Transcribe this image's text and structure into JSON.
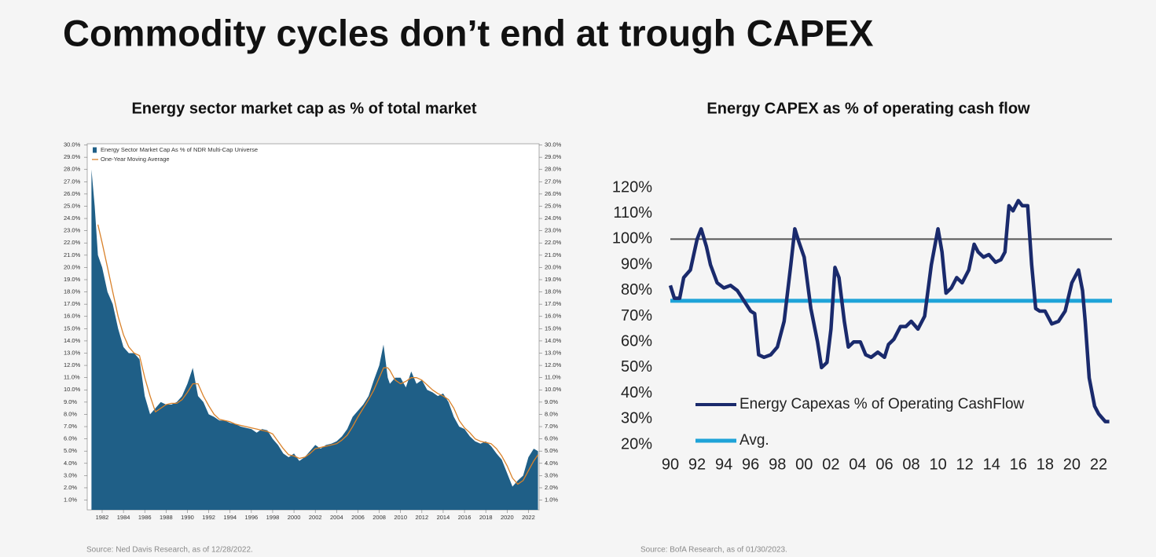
{
  "slide": {
    "title": "Commodity cycles don’t end at trough CAPEX"
  },
  "chart_data": [
    {
      "type": "area",
      "title": "Energy sector market cap as % of total market",
      "source": "Source: Ned Davis Research, as of 12/28/2022.",
      "x": [
        1981,
        1981.3,
        1981.6,
        1982,
        1982.5,
        1983,
        1983.5,
        1984,
        1984.5,
        1985,
        1985.5,
        1986,
        1986.5,
        1987,
        1987.5,
        1988,
        1988.5,
        1989,
        1989.5,
        1990,
        1990.5,
        1991,
        1991.5,
        1992,
        1992.5,
        1993,
        1993.5,
        1994,
        1994.5,
        1995,
        1995.5,
        1996,
        1996.5,
        1997,
        1997.5,
        1998,
        1998.5,
        1999,
        1999.5,
        2000,
        2000.5,
        2001,
        2001.5,
        2002,
        2002.5,
        2003,
        2003.5,
        2004,
        2004.5,
        2005,
        2005.5,
        2006,
        2006.5,
        2007,
        2007.5,
        2008,
        2008.4,
        2008.8,
        2009,
        2009.5,
        2010,
        2010.5,
        2011,
        2011.5,
        2012,
        2012.5,
        2013,
        2013.5,
        2014,
        2014.5,
        2015,
        2015.5,
        2016,
        2016.5,
        2017,
        2017.5,
        2018,
        2018.5,
        2019,
        2019.5,
        2020,
        2020.5,
        2021,
        2021.5,
        2022,
        2022.5,
        2022.9
      ],
      "series": [
        {
          "name": "Energy Sector Market Cap As % of NDR Multi-Cap Universe",
          "color": "#1f5f87",
          "values": [
            28,
            25,
            21,
            20,
            18,
            17,
            15,
            13.5,
            13,
            13,
            12.5,
            9.5,
            8,
            8.5,
            9,
            8.8,
            8.8,
            9,
            9.5,
            10.5,
            11.8,
            9.5,
            9,
            8,
            7.8,
            7.5,
            7.5,
            7.3,
            7.2,
            7,
            6.9,
            6.8,
            6.5,
            6.8,
            6.7,
            6,
            5.5,
            4.8,
            4.5,
            4.8,
            4.2,
            4.5,
            5,
            5.5,
            5.2,
            5.5,
            5.6,
            5.8,
            6.2,
            6.8,
            7.8,
            8.3,
            8.8,
            9.5,
            10.8,
            12,
            13.7,
            11,
            10.5,
            11,
            11,
            10.2,
            11.5,
            10.5,
            10.8,
            10,
            9.8,
            9.5,
            9.7,
            9,
            7.8,
            7,
            6.8,
            6.2,
            5.8,
            5.6,
            5.8,
            5.4,
            4.8,
            4.3,
            3.2,
            2.1,
            2.6,
            3,
            4.5,
            5.2,
            5
          ]
        },
        {
          "name": "One-Year Moving Average",
          "color": "#d9822b",
          "type": "line",
          "values": [
            null,
            null,
            23.5,
            22,
            20,
            18,
            16,
            14.5,
            13.5,
            13,
            12.8,
            11,
            9.5,
            8.2,
            8.5,
            8.8,
            8.9,
            8.9,
            9.2,
            9.8,
            10.5,
            10.5,
            9.5,
            8.7,
            8,
            7.6,
            7.5,
            7.4,
            7.2,
            7.1,
            7,
            6.9,
            6.8,
            6.7,
            6.6,
            6.4,
            5.8,
            5.2,
            4.7,
            4.6,
            4.4,
            4.5,
            4.8,
            5.2,
            5.3,
            5.4,
            5.5,
            5.6,
            5.9,
            6.3,
            7,
            7.8,
            8.5,
            9.2,
            10,
            11,
            11.8,
            11.8,
            11.6,
            10.8,
            10.5,
            10.7,
            11,
            11,
            10.8,
            10.4,
            10,
            9.7,
            9.5,
            9.2,
            8.5,
            7.5,
            6.9,
            6.5,
            6,
            5.8,
            5.7,
            5.6,
            5.2,
            4.6,
            3.8,
            2.8,
            2.3,
            2.6,
            3.4,
            4.2,
            4.7
          ]
        }
      ],
      "xlim": [
        1980.6,
        2023
      ],
      "xticks": [
        1982,
        1984,
        1986,
        1988,
        1990,
        1992,
        1994,
        1996,
        1998,
        2000,
        2002,
        2004,
        2006,
        2008,
        2010,
        2012,
        2014,
        2016,
        2018,
        2020,
        2022
      ],
      "ylim": [
        0.2,
        30.1
      ],
      "yticks": [
        {
          "value": 1,
          "label": "1.0%"
        },
        {
          "value": 2,
          "label": "2.0%"
        },
        {
          "value": 3,
          "label": "3.0%"
        },
        {
          "value": 4,
          "label": "4.0%"
        },
        {
          "value": 5,
          "label": "5.0%"
        },
        {
          "value": 6,
          "label": "6.0%"
        },
        {
          "value": 7,
          "label": "7.0%"
        },
        {
          "value": 8,
          "label": "8.0%"
        },
        {
          "value": 9,
          "label": "9.0%"
        },
        {
          "value": 10,
          "label": "10.0%"
        },
        {
          "value": 11,
          "label": "11.0%"
        },
        {
          "value": 12,
          "label": "12.0%"
        },
        {
          "value": 13,
          "label": "13.0%"
        },
        {
          "value": 14,
          "label": "14.0%"
        },
        {
          "value": 15,
          "label": "15.0%"
        },
        {
          "value": 16,
          "label": "16.0%"
        },
        {
          "value": 17,
          "label": "17.0%"
        },
        {
          "value": 18,
          "label": "18.0%"
        },
        {
          "value": 19,
          "label": "19.0%"
        },
        {
          "value": 20,
          "label": "20.0%"
        },
        {
          "value": 21,
          "label": "21.0%"
        },
        {
          "value": 22,
          "label": "22.0%"
        },
        {
          "value": 23,
          "label": "23.0%"
        },
        {
          "value": 24,
          "label": "24.0%"
        },
        {
          "value": 25,
          "label": "25.0%"
        },
        {
          "value": 26,
          "label": "26.0%"
        },
        {
          "value": 27,
          "label": "27.0%"
        },
        {
          "value": 28,
          "label": "28.0%"
        },
        {
          "value": 29,
          "label": "29.0%"
        },
        {
          "value": 30,
          "label": "30.0%"
        }
      ],
      "mirror_y_axis": true,
      "legend": "upper left"
    },
    {
      "type": "line",
      "title": "Energy CAPEX as % of operating cash flow",
      "source": "Source: BofA Research, as of 01/30/2023.",
      "x": [
        1990,
        1990.3,
        1990.7,
        1991,
        1991.5,
        1992,
        1992.3,
        1992.7,
        1993,
        1993.5,
        1994,
        1994.5,
        1995,
        1995.5,
        1996,
        1996.3,
        1996.6,
        1997,
        1997.5,
        1998,
        1998.5,
        1999,
        1999.3,
        1999.6,
        2000,
        2000.5,
        2001,
        2001.3,
        2001.7,
        2002,
        2002.3,
        2002.6,
        2003,
        2003.3,
        2003.7,
        2004.2,
        2004.6,
        2005,
        2005.5,
        2006,
        2006.3,
        2006.7,
        2007.2,
        2007.6,
        2008,
        2008.5,
        2009,
        2009.5,
        2010,
        2010.3,
        2010.6,
        2011,
        2011.4,
        2011.8,
        2012.3,
        2012.7,
        2013,
        2013.4,
        2013.8,
        2014.3,
        2014.7,
        2015,
        2015.3,
        2015.6,
        2016,
        2016.3,
        2016.7,
        2017,
        2017.3,
        2017.6,
        2018,
        2018.5,
        2019,
        2019.5,
        2020,
        2020.5,
        2020.8,
        2021,
        2021.3,
        2021.7,
        2022,
        2022.5,
        2022.8
      ],
      "series": [
        {
          "name": "Energy Capexas % of Operating CashFlow",
          "color": "#1a2a6c",
          "values": [
            82,
            77,
            77,
            85,
            88,
            100,
            104,
            97,
            90,
            83,
            81,
            82,
            80,
            76,
            72,
            71,
            55,
            54,
            55,
            58,
            68,
            90,
            104,
            99,
            93,
            73,
            60,
            50,
            52,
            65,
            89,
            85,
            68,
            58,
            60,
            60,
            55,
            54,
            56,
            54,
            59,
            61,
            66,
            66,
            68,
            65,
            70,
            90,
            104,
            95,
            79,
            81,
            85,
            83,
            88,
            98,
            95,
            93,
            94,
            91,
            92,
            95,
            113,
            111,
            115,
            113,
            113,
            90,
            73,
            72,
            72,
            67,
            68,
            72,
            83,
            88,
            80,
            68,
            46,
            35,
            32,
            29,
            29
          ]
        }
      ],
      "average": {
        "name": "Avg.",
        "color": "#1ea3d8",
        "value": 76
      },
      "reference_line": {
        "value": 100,
        "color": "#555555"
      },
      "xlim": [
        1990,
        2023
      ],
      "xticks": [
        {
          "value": 1990,
          "label": "90"
        },
        {
          "value": 1992,
          "label": "92"
        },
        {
          "value": 1994,
          "label": "94"
        },
        {
          "value": 1996,
          "label": "96"
        },
        {
          "value": 1998,
          "label": "98"
        },
        {
          "value": 2000,
          "label": "00"
        },
        {
          "value": 2002,
          "label": "02"
        },
        {
          "value": 2004,
          "label": "04"
        },
        {
          "value": 2006,
          "label": "06"
        },
        {
          "value": 2008,
          "label": "08"
        },
        {
          "value": 2010,
          "label": "10"
        },
        {
          "value": 2012,
          "label": "12"
        },
        {
          "value": 2014,
          "label": "14"
        },
        {
          "value": 2016,
          "label": "16"
        },
        {
          "value": 2018,
          "label": "18"
        },
        {
          "value": 2020,
          "label": "20"
        },
        {
          "value": 2022,
          "label": "22"
        }
      ],
      "ylim": [
        20,
        120
      ],
      "yticks": [
        {
          "value": 20,
          "label": "20%"
        },
        {
          "value": 30,
          "label": "30%"
        },
        {
          "value": 40,
          "label": "40%"
        },
        {
          "value": 50,
          "label": "50%"
        },
        {
          "value": 60,
          "label": "60%"
        },
        {
          "value": 70,
          "label": "70%"
        },
        {
          "value": 80,
          "label": "80%"
        },
        {
          "value": 90,
          "label": "90%"
        },
        {
          "value": 100,
          "label": "100%"
        },
        {
          "value": 110,
          "label": "110%"
        },
        {
          "value": 120,
          "label": "120%"
        }
      ],
      "legend": "lower left"
    }
  ]
}
